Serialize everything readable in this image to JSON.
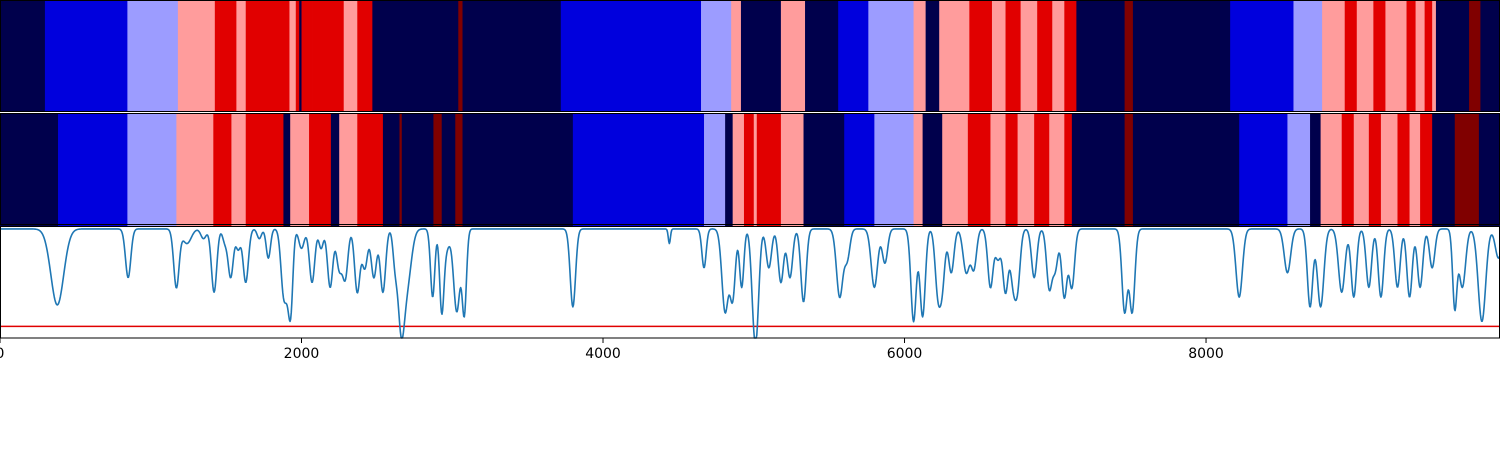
{
  "chart_data": {
    "type": "heatmap",
    "xlim": [
      0,
      9950
    ],
    "x_ticks": [
      0,
      2000,
      4000,
      6000,
      8000
    ],
    "x_tick_labels": [
      "0",
      "2000",
      "4000",
      "6000",
      "8000"
    ],
    "segment_colors": {
      "0": "#00004c",
      "1": "#0000dd",
      "2": "#9c9cff",
      "3": "#ff9c9c",
      "4": "#e10000",
      "5": "#800000"
    },
    "heatmap_rows": [
      {
        "segments": [
          [
            0,
            298,
            0
          ],
          [
            298,
            845,
            1
          ],
          [
            845,
            1180,
            2
          ],
          [
            1180,
            1425,
            3
          ],
          [
            1425,
            1568,
            4
          ],
          [
            1568,
            1630,
            3
          ],
          [
            1630,
            1920,
            4
          ],
          [
            1920,
            1962,
            3
          ],
          [
            1962,
            1985,
            4
          ],
          [
            1985,
            2000,
            0
          ],
          [
            2000,
            2070,
            4
          ],
          [
            2070,
            2280,
            4
          ],
          [
            2280,
            2370,
            3
          ],
          [
            2370,
            2470,
            4
          ],
          [
            2470,
            3040,
            0
          ],
          [
            3040,
            3068,
            5
          ],
          [
            3068,
            3720,
            0
          ],
          [
            3720,
            4650,
            1
          ],
          [
            4650,
            4850,
            2
          ],
          [
            4850,
            4915,
            3
          ],
          [
            4915,
            5180,
            0
          ],
          [
            5180,
            5340,
            3
          ],
          [
            5340,
            5560,
            0
          ],
          [
            5560,
            5760,
            1
          ],
          [
            5760,
            6060,
            2
          ],
          [
            6060,
            6140,
            3
          ],
          [
            6140,
            6230,
            0
          ],
          [
            6230,
            6430,
            3
          ],
          [
            6430,
            6580,
            4
          ],
          [
            6580,
            6670,
            3
          ],
          [
            6670,
            6770,
            4
          ],
          [
            6770,
            6880,
            3
          ],
          [
            6880,
            6980,
            4
          ],
          [
            6980,
            7060,
            3
          ],
          [
            7060,
            7140,
            4
          ],
          [
            7140,
            7460,
            0
          ],
          [
            7460,
            7515,
            5
          ],
          [
            7515,
            8160,
            0
          ],
          [
            8160,
            8580,
            1
          ],
          [
            8580,
            8770,
            2
          ],
          [
            8770,
            8920,
            3
          ],
          [
            8920,
            9000,
            4
          ],
          [
            9000,
            9110,
            3
          ],
          [
            9110,
            9190,
            4
          ],
          [
            9190,
            9330,
            3
          ],
          [
            9330,
            9390,
            4
          ],
          [
            9390,
            9450,
            3
          ],
          [
            9450,
            9500,
            4
          ],
          [
            9500,
            9525,
            3
          ],
          [
            9525,
            9745,
            0
          ],
          [
            9745,
            9820,
            5
          ],
          [
            9820,
            9950,
            0
          ]
        ]
      },
      {
        "segments": [
          [
            0,
            385,
            0
          ],
          [
            385,
            845,
            1
          ],
          [
            845,
            1170,
            2
          ],
          [
            1170,
            1415,
            3
          ],
          [
            1415,
            1535,
            4
          ],
          [
            1535,
            1630,
            3
          ],
          [
            1630,
            1880,
            4
          ],
          [
            1880,
            1925,
            0
          ],
          [
            1925,
            2050,
            3
          ],
          [
            2050,
            2195,
            4
          ],
          [
            2195,
            2250,
            0
          ],
          [
            2250,
            2370,
            3
          ],
          [
            2370,
            2540,
            4
          ],
          [
            2540,
            2650,
            0
          ],
          [
            2650,
            2665,
            5
          ],
          [
            2665,
            2875,
            0
          ],
          [
            2875,
            2930,
            5
          ],
          [
            2930,
            3020,
            0
          ],
          [
            3020,
            3068,
            5
          ],
          [
            3068,
            3800,
            0
          ],
          [
            3800,
            4670,
            1
          ],
          [
            4670,
            4810,
            2
          ],
          [
            4810,
            4860,
            0
          ],
          [
            4860,
            4935,
            3
          ],
          [
            4935,
            5000,
            4
          ],
          [
            5000,
            5020,
            3
          ],
          [
            5020,
            5180,
            4
          ],
          [
            5180,
            5330,
            3
          ],
          [
            5330,
            5600,
            0
          ],
          [
            5600,
            5800,
            1
          ],
          [
            5800,
            6060,
            2
          ],
          [
            6060,
            6120,
            3
          ],
          [
            6120,
            6250,
            0
          ],
          [
            6250,
            6420,
            3
          ],
          [
            6420,
            6570,
            4
          ],
          [
            6570,
            6670,
            3
          ],
          [
            6670,
            6750,
            4
          ],
          [
            6750,
            6860,
            3
          ],
          [
            6860,
            6960,
            4
          ],
          [
            6960,
            7060,
            3
          ],
          [
            7060,
            7110,
            4
          ],
          [
            7110,
            7460,
            0
          ],
          [
            7460,
            7515,
            5
          ],
          [
            7515,
            8220,
            0
          ],
          [
            8220,
            8540,
            1
          ],
          [
            8540,
            8690,
            2
          ],
          [
            8690,
            8760,
            0
          ],
          [
            8760,
            8900,
            3
          ],
          [
            8900,
            8980,
            4
          ],
          [
            8980,
            9080,
            3
          ],
          [
            9080,
            9160,
            4
          ],
          [
            9160,
            9270,
            3
          ],
          [
            9270,
            9350,
            4
          ],
          [
            9350,
            9420,
            3
          ],
          [
            9420,
            9500,
            4
          ],
          [
            9500,
            9650,
            0
          ],
          [
            9650,
            9810,
            5
          ],
          [
            9810,
            9950,
            0
          ]
        ]
      }
    ],
    "line": {
      "color": "#1f77b4",
      "ylim": [
        -0.12,
        1.03
      ],
      "baseline": 1.0,
      "dips": [
        [
          60,
          0.22,
          380
        ],
        [
          25,
          0.5,
          850
        ],
        [
          25,
          0.4,
          1170
        ],
        [
          40,
          0.85,
          1240
        ],
        [
          25,
          0.9,
          1350
        ],
        [
          25,
          0.35,
          1420
        ],
        [
          20,
          0.88,
          1490
        ],
        [
          25,
          0.5,
          1530
        ],
        [
          20,
          0.8,
          1580
        ],
        [
          25,
          0.45,
          1630
        ],
        [
          20,
          0.9,
          1720
        ],
        [
          20,
          0.7,
          1780
        ],
        [
          25,
          0.4,
          1880
        ],
        [
          25,
          0.55,
          1910
        ],
        [
          20,
          0.35,
          1930
        ],
        [
          25,
          0.8,
          2000
        ],
        [
          25,
          0.45,
          2070
        ],
        [
          20,
          0.8,
          2130
        ],
        [
          25,
          0.4,
          2190
        ],
        [
          25,
          0.6,
          2250
        ],
        [
          25,
          0.5,
          2290
        ],
        [
          25,
          0.35,
          2370
        ],
        [
          25,
          0.6,
          2420
        ],
        [
          25,
          0.5,
          2480
        ],
        [
          25,
          0.35,
          2540
        ],
        [
          20,
          0.7,
          2620
        ],
        [
          30,
          0.1,
          2660
        ],
        [
          40,
          0.45,
          2700
        ],
        [
          20,
          0.3,
          2870
        ],
        [
          20,
          0.2,
          2930
        ],
        [
          30,
          0.8,
          2960
        ],
        [
          30,
          0.15,
          3030
        ],
        [
          20,
          0.15,
          3080
        ],
        [
          25,
          0.2,
          3800
        ],
        [
          10,
          0.85,
          4440
        ],
        [
          20,
          0.6,
          4670
        ],
        [
          30,
          0.15,
          4810
        ],
        [
          25,
          0.3,
          4860
        ],
        [
          20,
          0.4,
          4920
        ],
        [
          25,
          0.35,
          5000
        ],
        [
          25,
          0.25,
          5020
        ],
        [
          25,
          0.6,
          5100
        ],
        [
          25,
          0.45,
          5180
        ],
        [
          25,
          0.5,
          5240
        ],
        [
          25,
          0.25,
          5330
        ],
        [
          30,
          0.3,
          5570
        ],
        [
          25,
          0.7,
          5620
        ],
        [
          30,
          0.4,
          5800
        ],
        [
          25,
          0.65,
          5870
        ],
        [
          25,
          0.05,
          6060
        ],
        [
          25,
          0.1,
          6120
        ],
        [
          25,
          0.4,
          6220
        ],
        [
          25,
          0.45,
          6250
        ],
        [
          25,
          0.55,
          6310
        ],
        [
          30,
          0.55,
          6410
        ],
        [
          25,
          0.6,
          6460
        ],
        [
          25,
          0.4,
          6570
        ],
        [
          25,
          0.7,
          6620
        ],
        [
          25,
          0.35,
          6670
        ],
        [
          25,
          0.5,
          6720
        ],
        [
          25,
          0.45,
          6750
        ],
        [
          25,
          0.5,
          6860
        ],
        [
          25,
          0.4,
          6960
        ],
        [
          25,
          0.6,
          7000
        ],
        [
          25,
          0.3,
          7060
        ],
        [
          25,
          0.4,
          7110
        ],
        [
          25,
          0.15,
          7460
        ],
        [
          25,
          0.15,
          7510
        ],
        [
          30,
          0.3,
          8220
        ],
        [
          30,
          0.55,
          8540
        ],
        [
          25,
          0.2,
          8690
        ],
        [
          30,
          0.2,
          8760
        ],
        [
          30,
          0.35,
          8900
        ],
        [
          25,
          0.3,
          8980
        ],
        [
          25,
          0.4,
          9080
        ],
        [
          25,
          0.3,
          9160
        ],
        [
          25,
          0.4,
          9270
        ],
        [
          25,
          0.3,
          9350
        ],
        [
          25,
          0.4,
          9420
        ],
        [
          25,
          0.6,
          9500
        ],
        [
          20,
          0.2,
          9650
        ],
        [
          30,
          0.4,
          9700
        ],
        [
          35,
          0.05,
          9830
        ],
        [
          30,
          0.7,
          9940
        ]
      ]
    },
    "hline": {
      "y": 0.0,
      "color": "#e00000"
    }
  }
}
